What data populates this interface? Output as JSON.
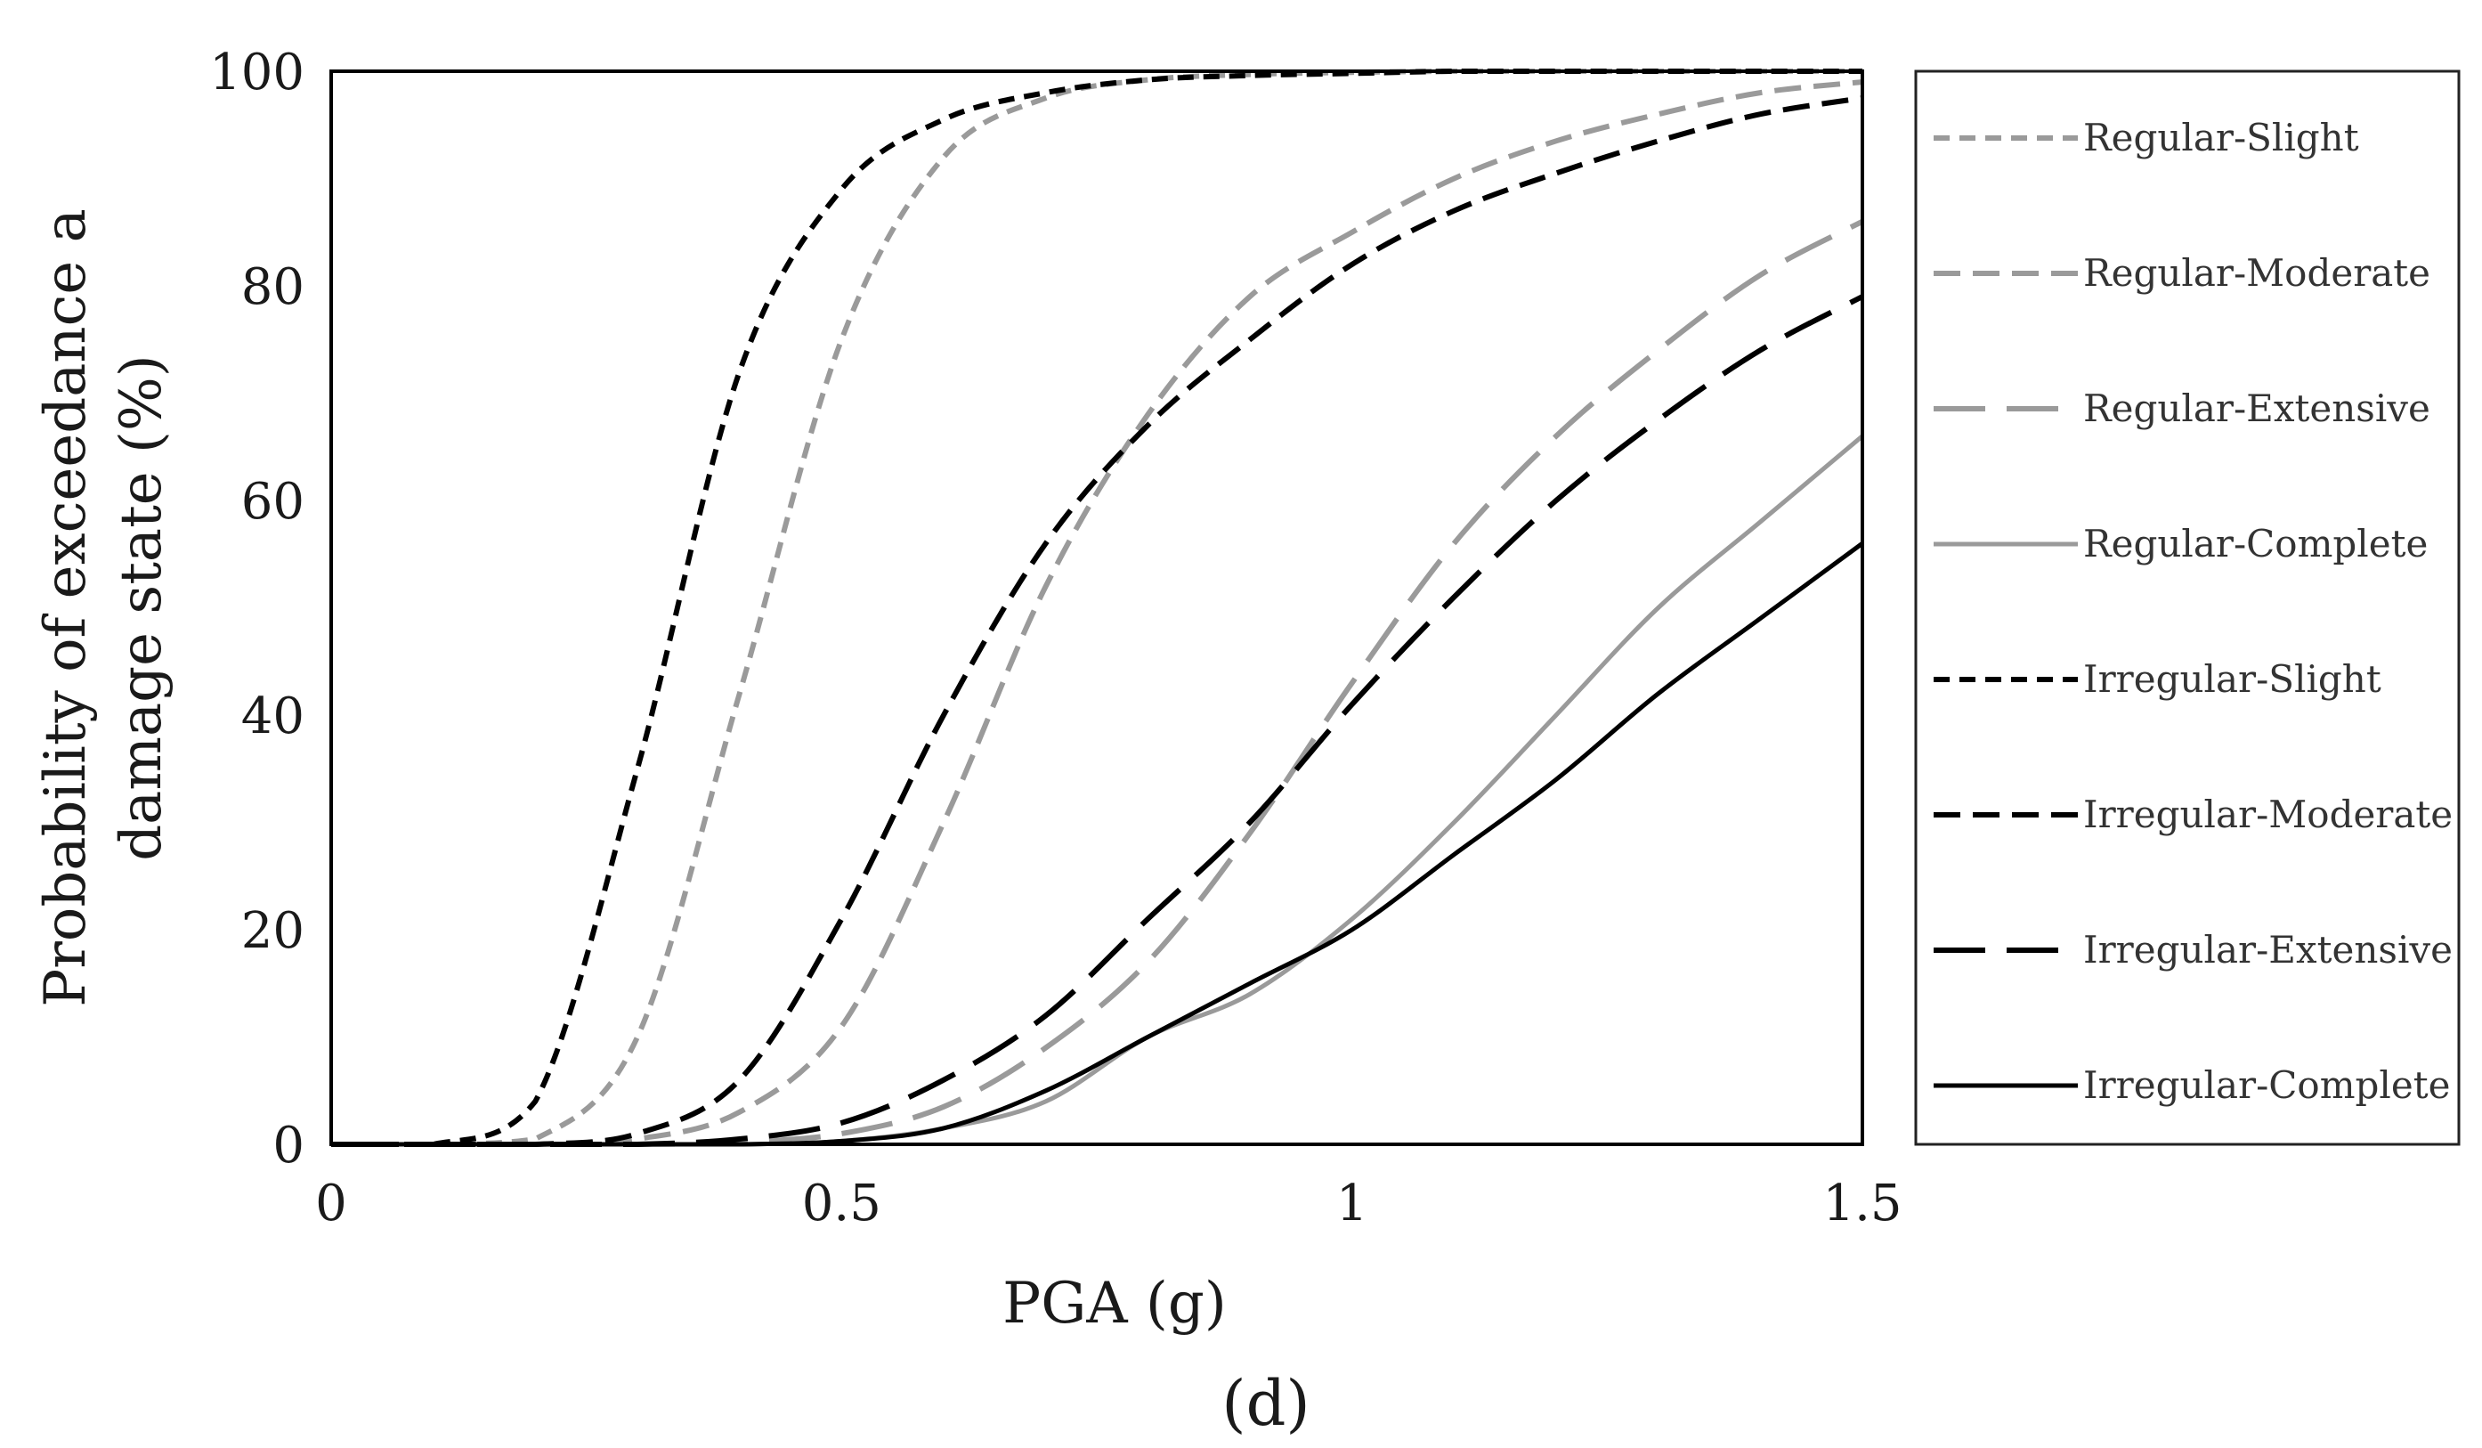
{
  "chart_data": {
    "type": "line",
    "xlabel": "PGA (g)",
    "ylabel": [
      "Probability of exceedance a",
      "damage state (%)"
    ],
    "xlim": [
      0,
      1.5
    ],
    "ylim": [
      0,
      100
    ],
    "x_ticks": [
      "0",
      "0.5",
      "1",
      "1.5"
    ],
    "y_ticks": [
      "0",
      "20",
      "40",
      "60",
      "80",
      "100"
    ],
    "grid": false,
    "legend_position": "right, outside plot, boxed",
    "panel_label": "(d)",
    "x": [
      0.0,
      0.1,
      0.2,
      0.3,
      0.4,
      0.5,
      0.6,
      0.7,
      0.8,
      0.9,
      1.0,
      1.1,
      1.2,
      1.3,
      1.4,
      1.5
    ],
    "series": [
      {
        "name": "Regular-Slight",
        "color": "#9a9a9a",
        "dash": "short",
        "values": [
          0,
          0,
          0.5,
          10,
          42,
          75,
          92,
          97.5,
          99.2,
          99.7,
          99.9,
          100,
          100,
          100,
          100,
          100
        ]
      },
      {
        "name": "Regular-Moderate",
        "color": "#9a9a9a",
        "dash": "medium",
        "values": [
          0,
          0,
          0,
          0.5,
          3,
          11,
          30,
          52,
          68,
          79,
          85,
          90,
          93.5,
          96,
          98,
          99
        ]
      },
      {
        "name": "Regular-Extensive",
        "color": "#9a9a9a",
        "dash": "long",
        "values": [
          0,
          0,
          0,
          0,
          0.2,
          1,
          3.5,
          9,
          17,
          29,
          43,
          56,
          66,
          74,
          81,
          86
        ]
      },
      {
        "name": "Regular-Complete",
        "color": "#9a9a9a",
        "dash": "solid",
        "values": [
          0,
          0,
          0,
          0,
          0,
          0.3,
          1.5,
          4,
          10,
          14,
          21,
          30,
          40,
          50,
          58,
          66
        ]
      },
      {
        "name": "Irregular-Slight",
        "color": "#000000",
        "dash": "short",
        "values": [
          0,
          0,
          4,
          35,
          72,
          89,
          95.5,
          98,
          99.2,
          99.6,
          99.8,
          100,
          100,
          100,
          100,
          100
        ]
      },
      {
        "name": "Irregular-Moderate",
        "color": "#000000",
        "dash": "medium",
        "values": [
          0,
          0,
          0,
          1,
          6,
          21,
          40,
          56,
          67,
          75,
          82,
          87,
          90.5,
          93.5,
          96,
          97.5
        ]
      },
      {
        "name": "Irregular-Extensive",
        "color": "#000000",
        "dash": "long",
        "values": [
          0,
          0,
          0,
          0,
          0.5,
          2,
          6,
          12,
          21,
          30,
          41,
          51,
          60,
          67.5,
          74,
          79
        ]
      },
      {
        "name": "Irregular-Complete",
        "color": "#000000",
        "dash": "solid",
        "values": [
          0,
          0,
          0,
          0,
          0,
          0.3,
          1.5,
          5,
          10,
          15,
          20,
          27,
          34,
          42,
          49,
          56
        ]
      }
    ]
  }
}
